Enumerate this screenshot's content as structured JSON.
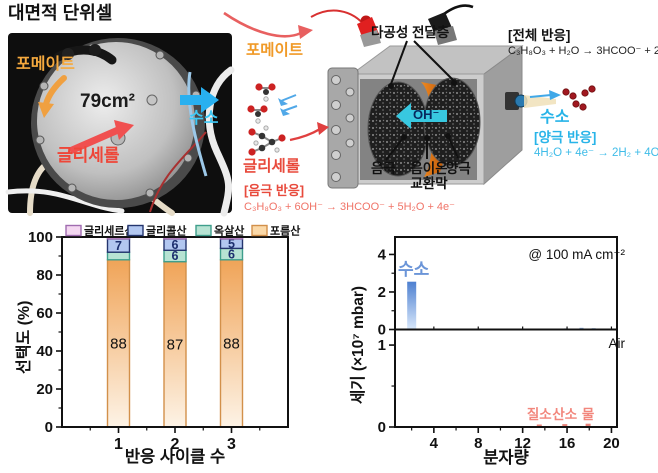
{
  "photo_section": {
    "title": "대면적 단위셀",
    "formate_label": "포메이트",
    "area_label": "79cm²",
    "hydrogen_label": "수소",
    "glycerol_label": "글리세롤"
  },
  "middle": {
    "formate_label": "포메이트",
    "glycerol_label": "글리세롤",
    "cathode_reaction_title": "[음극 반응]",
    "cathode_reaction_formula": "C₃H₈O₃ + 6OH⁻ → 3HCOO⁻ + 5H₂O + 4e⁻"
  },
  "cell_diagram": {
    "porous_layer_label": "다공성 전달층",
    "oh_label": "OH⁻",
    "cathode_label": "음극",
    "membrane_label_line1": "음이온",
    "membrane_label_line2": "교환막",
    "anode_label": "양극",
    "hydrogen_label": "수소",
    "overall_reaction_title": "[전체 반응]",
    "overall_reaction_formula": "C₃H₈O₃ + H₂O → 3HCOO⁻ + 2H₂",
    "anode_reaction_title": "[양극 반응]",
    "anode_reaction_formula": "4H₂O + 4e⁻ → 2H₂ + 4OH⁻"
  },
  "colors": {
    "formate_orange": "#f09a28",
    "glycerol_red": "#e84a3c",
    "hydrogen_cyan": "#28b4e8",
    "membrane_orange": "#e87b1e"
  },
  "chart_data": [
    {
      "type": "bar",
      "stacked": true,
      "categories": [
        "1",
        "2",
        "3"
      ],
      "series": [
        {
          "name": "포름산",
          "values": [
            88,
            87,
            88
          ],
          "labels": [
            "88",
            "87",
            "88"
          ],
          "color_top": "#f0a458",
          "color_bottom": "#fdf3e6",
          "swatch": "#fbd9a8",
          "border": "#d2904a"
        },
        {
          "name": "옥살산",
          "values": [
            4,
            6,
            6
          ],
          "labels": [
            "",
            "6",
            "6"
          ],
          "color": "#b7e3d3",
          "swatch": "#b7e3d3",
          "border": "#3f9e8c"
        },
        {
          "name": "글리콜산",
          "values": [
            7,
            6,
            5
          ],
          "labels": [
            "7",
            "6",
            "5"
          ],
          "color": "#b2c7f0",
          "swatch": "#b2c7f0",
          "border": "#24356e"
        },
        {
          "name": "글리세르산",
          "values": [
            1,
            1,
            1
          ],
          "labels": [
            "",
            "",
            ""
          ],
          "color": "#f4d7f1",
          "swatch": "#f4d7f1",
          "border": "#a06cb0"
        }
      ],
      "xlabel": "반응 사이클 수",
      "ylabel": "선택도 (%)",
      "ylim": [
        0,
        100
      ],
      "yticks": [
        0,
        20,
        40,
        60,
        80,
        100
      ],
      "legend_position": "top"
    },
    {
      "type": "bar",
      "subtype": "gas-spectrum-two-panels",
      "annotation": "@ 100 mA cm⁻²",
      "xlabel": "분자량",
      "ylabel": "세기 (×10⁷ mbar)",
      "xlim": [
        0.5,
        20.5
      ],
      "xticks": [
        4,
        8,
        12,
        16,
        20
      ],
      "xticks_minor": [
        2,
        6,
        10,
        14,
        18
      ],
      "panels": [
        {
          "label": "수소",
          "label_color": "#6b95d8",
          "ylim": [
            0,
            4.93
          ],
          "yticks": [
            0,
            2,
            4
          ],
          "yticks_minor": [
            1,
            3
          ],
          "bars": [
            {
              "x": 2,
              "value": 2.55
            }
          ],
          "bar_color_top": "#4e80d0",
          "bar_color_bottom": "#d9e8fb",
          "noise": [
            {
              "x": 4.3,
              "value": 0.05
            },
            {
              "x": 6.2,
              "value": 0.04
            },
            {
              "x": 9,
              "value": 0.04
            },
            {
              "x": 12.8,
              "value": 0.05
            },
            {
              "x": 15.9,
              "value": 0.06
            },
            {
              "x": 17.3,
              "value": 0.09
            },
            {
              "x": 18.4,
              "value": 0.07
            },
            {
              "x": 19.8,
              "value": 0.05
            }
          ]
        },
        {
          "label": "Air",
          "label_color": "#111111",
          "ylim": [
            0,
            1.19
          ],
          "yticks": [
            0,
            1
          ],
          "yticks_minor": [
            0.5
          ],
          "peaks": [
            {
              "x": 13.5,
              "value": 0.03,
              "label": "질소"
            },
            {
              "x": 15.8,
              "value": 0.035,
              "label": "산소"
            },
            {
              "x": 17.9,
              "value": 0.04,
              "label": "물"
            }
          ],
          "peak_color": "#e8837a",
          "peak_label_color": "#f2867c"
        }
      ]
    }
  ]
}
